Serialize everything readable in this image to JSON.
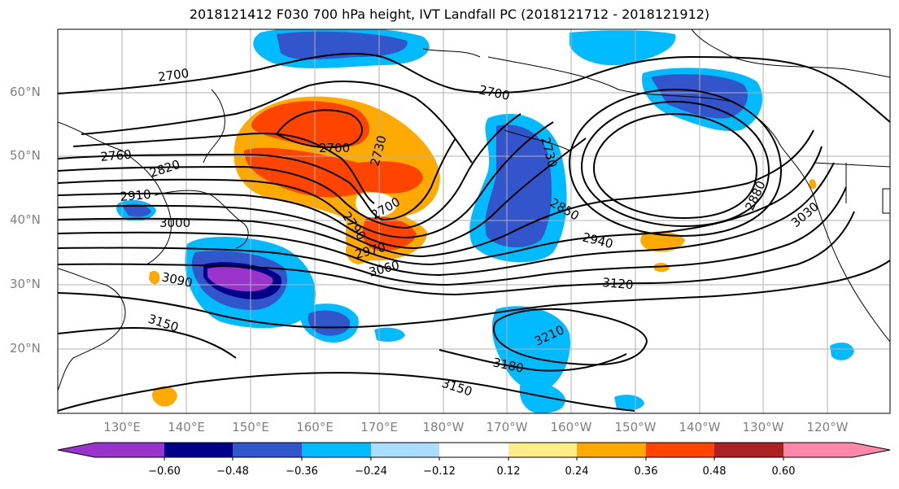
{
  "title": "2018121412 F030 700 hPa height, IVT Landfall PC (2018121712 - 2018121912)",
  "lat_labels": [
    "60°N",
    "50°N",
    "40°N",
    "30°N",
    "20°N"
  ],
  "lon_labels": [
    "130°E",
    "140°E",
    "150°E",
    "160°E",
    "170°E",
    "180°W",
    "170°W",
    "160°W",
    "150°W",
    "140°W",
    "130°W",
    "120°W"
  ],
  "contour_labels": [
    "2700",
    "2700",
    "2700",
    "2730",
    "2760",
    "2820",
    "2910",
    "3000",
    "3090",
    "3150",
    "2730",
    "2850",
    "2940",
    "3120",
    "2880",
    "3030",
    "2970",
    "3060",
    "2790",
    "2700",
    "3210",
    "3180",
    "3150"
  ],
  "colorbar": {
    "ticks": [
      "−0.60",
      "−0.48",
      "−0.36",
      "−0.24",
      "−0.12",
      "0.12",
      "0.24",
      "0.36",
      "0.48",
      "0.60"
    ],
    "colors": [
      "#9933cc",
      "#000088",
      "#3355cc",
      "#00bbff",
      "#aaddff",
      "#ffffff",
      "#ffee88",
      "#ffaa00",
      "#ff4400",
      "#aa2222",
      "#ff88aa"
    ]
  }
}
